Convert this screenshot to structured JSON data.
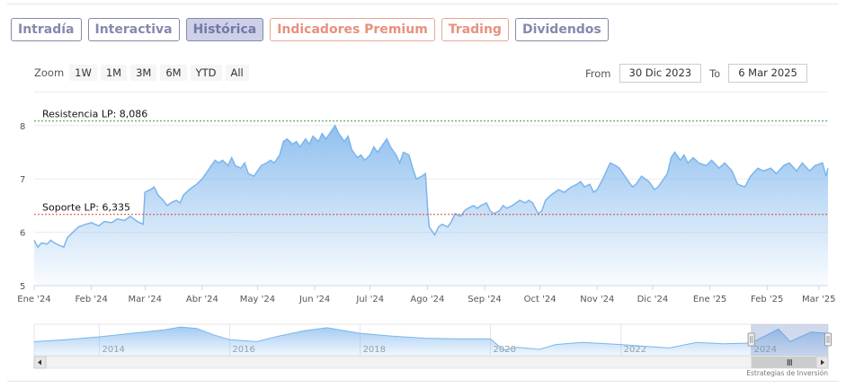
{
  "tabs": [
    {
      "label": "Intradía",
      "style": "normal"
    },
    {
      "label": "Interactiva",
      "style": "normal"
    },
    {
      "label": "Histórica",
      "style": "active"
    },
    {
      "label": "Indicadores Premium",
      "style": "orange"
    },
    {
      "label": "Trading",
      "style": "orange"
    },
    {
      "label": "Dividendos",
      "style": "normal"
    }
  ],
  "zoom": {
    "label": "Zoom",
    "buttons": [
      "1W",
      "1M",
      "3M",
      "6M",
      "YTD",
      "All"
    ]
  },
  "range": {
    "from_label": "From",
    "from_value": "30 Dic 2023",
    "to_label": "To",
    "to_value": "6 Mar 2025"
  },
  "credit": "Estrategias de Inversión",
  "colors": {
    "line": "#7cb5ec",
    "resistance": "#2e9e3e",
    "support": "#d8453f",
    "tab_border": "#8589ad",
    "tab_orange": "#e8917e"
  },
  "chart_data": {
    "type": "area",
    "title": "",
    "ylim": [
      5,
      8.3
    ],
    "yticks": [
      5,
      6,
      7,
      8
    ],
    "xticks": [
      "Ene '24",
      "Feb '24",
      "Mar '24",
      "Abr '24",
      "May '24",
      "Jun '24",
      "Jul '24",
      "Ago '24",
      "Sep '24",
      "Oct '24",
      "Nov '24",
      "Dic '24",
      "Ene '25",
      "Feb '25",
      "Mar '25"
    ],
    "x_start": "2024-01-01",
    "x_end": "2025-03-06",
    "series": [
      {
        "values": [
          [
            "2024-01-01",
            5.85
          ],
          [
            "2024-01-03",
            5.72
          ],
          [
            "2024-01-05",
            5.8
          ],
          [
            "2024-01-08",
            5.78
          ],
          [
            "2024-01-10",
            5.85
          ],
          [
            "2024-01-12",
            5.8
          ],
          [
            "2024-01-15",
            5.75
          ],
          [
            "2024-01-17",
            5.72
          ],
          [
            "2024-01-19",
            5.9
          ],
          [
            "2024-01-22",
            6.0
          ],
          [
            "2024-01-25",
            6.1
          ],
          [
            "2024-01-29",
            6.15
          ],
          [
            "2024-02-01",
            6.18
          ],
          [
            "2024-02-05",
            6.12
          ],
          [
            "2024-02-08",
            6.2
          ],
          [
            "2024-02-12",
            6.18
          ],
          [
            "2024-02-15",
            6.25
          ],
          [
            "2024-02-19",
            6.22
          ],
          [
            "2024-02-22",
            6.3
          ],
          [
            "2024-02-26",
            6.2
          ],
          [
            "2024-02-29",
            6.15
          ],
          [
            "2024-03-01",
            6.75
          ],
          [
            "2024-03-04",
            6.8
          ],
          [
            "2024-03-06",
            6.85
          ],
          [
            "2024-03-08",
            6.7
          ],
          [
            "2024-03-11",
            6.6
          ],
          [
            "2024-03-13",
            6.5
          ],
          [
            "2024-03-15",
            6.55
          ],
          [
            "2024-03-18",
            6.6
          ],
          [
            "2024-03-20",
            6.55
          ],
          [
            "2024-03-22",
            6.7
          ],
          [
            "2024-03-25",
            6.8
          ],
          [
            "2024-03-27",
            6.85
          ],
          [
            "2024-03-29",
            6.9
          ],
          [
            "2024-04-01",
            7.0
          ],
          [
            "2024-04-03",
            7.1
          ],
          [
            "2024-04-05",
            7.2
          ],
          [
            "2024-04-08",
            7.35
          ],
          [
            "2024-04-10",
            7.3
          ],
          [
            "2024-04-12",
            7.35
          ],
          [
            "2024-04-15",
            7.25
          ],
          [
            "2024-04-17",
            7.4
          ],
          [
            "2024-04-19",
            7.25
          ],
          [
            "2024-04-22",
            7.2
          ],
          [
            "2024-04-24",
            7.3
          ],
          [
            "2024-04-26",
            7.1
          ],
          [
            "2024-04-29",
            7.05
          ],
          [
            "2024-05-01",
            7.15
          ],
          [
            "2024-05-03",
            7.25
          ],
          [
            "2024-05-06",
            7.3
          ],
          [
            "2024-05-08",
            7.35
          ],
          [
            "2024-05-10",
            7.3
          ],
          [
            "2024-05-13",
            7.45
          ],
          [
            "2024-05-15",
            7.7
          ],
          [
            "2024-05-17",
            7.75
          ],
          [
            "2024-05-20",
            7.65
          ],
          [
            "2024-05-22",
            7.7
          ],
          [
            "2024-05-24",
            7.6
          ],
          [
            "2024-05-27",
            7.75
          ],
          [
            "2024-05-29",
            7.65
          ],
          [
            "2024-05-31",
            7.8
          ],
          [
            "2024-06-03",
            7.7
          ],
          [
            "2024-06-05",
            7.85
          ],
          [
            "2024-06-07",
            7.75
          ],
          [
            "2024-06-10",
            7.9
          ],
          [
            "2024-06-12",
            8.0
          ],
          [
            "2024-06-14",
            7.85
          ],
          [
            "2024-06-17",
            7.7
          ],
          [
            "2024-06-19",
            7.8
          ],
          [
            "2024-06-21",
            7.55
          ],
          [
            "2024-06-24",
            7.4
          ],
          [
            "2024-06-26",
            7.45
          ],
          [
            "2024-06-28",
            7.35
          ],
          [
            "2024-07-01",
            7.45
          ],
          [
            "2024-07-03",
            7.6
          ],
          [
            "2024-07-05",
            7.5
          ],
          [
            "2024-07-08",
            7.65
          ],
          [
            "2024-07-10",
            7.75
          ],
          [
            "2024-07-12",
            7.6
          ],
          [
            "2024-07-15",
            7.45
          ],
          [
            "2024-07-17",
            7.3
          ],
          [
            "2024-07-19",
            7.5
          ],
          [
            "2024-07-22",
            7.45
          ],
          [
            "2024-07-24",
            7.2
          ],
          [
            "2024-07-26",
            7.0
          ],
          [
            "2024-07-29",
            7.05
          ],
          [
            "2024-07-31",
            7.1
          ],
          [
            "2024-08-01",
            6.5
          ],
          [
            "2024-08-02",
            6.1
          ],
          [
            "2024-08-05",
            5.95
          ],
          [
            "2024-08-07",
            6.1
          ],
          [
            "2024-08-09",
            6.15
          ],
          [
            "2024-08-12",
            6.1
          ],
          [
            "2024-08-14",
            6.2
          ],
          [
            "2024-08-16",
            6.35
          ],
          [
            "2024-08-19",
            6.3
          ],
          [
            "2024-08-21",
            6.4
          ],
          [
            "2024-08-23",
            6.45
          ],
          [
            "2024-08-26",
            6.5
          ],
          [
            "2024-08-28",
            6.45
          ],
          [
            "2024-08-30",
            6.5
          ],
          [
            "2024-09-02",
            6.55
          ],
          [
            "2024-09-04",
            6.4
          ],
          [
            "2024-09-06",
            6.35
          ],
          [
            "2024-09-09",
            6.4
          ],
          [
            "2024-09-11",
            6.5
          ],
          [
            "2024-09-13",
            6.45
          ],
          [
            "2024-09-16",
            6.5
          ],
          [
            "2024-09-18",
            6.55
          ],
          [
            "2024-09-20",
            6.6
          ],
          [
            "2024-09-23",
            6.55
          ],
          [
            "2024-09-25",
            6.6
          ],
          [
            "2024-09-27",
            6.55
          ],
          [
            "2024-09-30",
            6.35
          ],
          [
            "2024-10-02",
            6.4
          ],
          [
            "2024-10-04",
            6.6
          ],
          [
            "2024-10-07",
            6.7
          ],
          [
            "2024-10-09",
            6.75
          ],
          [
            "2024-10-11",
            6.8
          ],
          [
            "2024-10-14",
            6.75
          ],
          [
            "2024-10-16",
            6.8
          ],
          [
            "2024-10-18",
            6.85
          ],
          [
            "2024-10-21",
            6.9
          ],
          [
            "2024-10-23",
            6.95
          ],
          [
            "2024-10-25",
            6.85
          ],
          [
            "2024-10-28",
            6.9
          ],
          [
            "2024-10-30",
            6.75
          ],
          [
            "2024-11-01",
            6.8
          ],
          [
            "2024-11-04",
            7.0
          ],
          [
            "2024-11-06",
            7.15
          ],
          [
            "2024-11-08",
            7.3
          ],
          [
            "2024-11-11",
            7.25
          ],
          [
            "2024-11-13",
            7.2
          ],
          [
            "2024-11-15",
            7.1
          ],
          [
            "2024-11-18",
            6.95
          ],
          [
            "2024-11-20",
            6.85
          ],
          [
            "2024-11-22",
            6.9
          ],
          [
            "2024-11-25",
            7.05
          ],
          [
            "2024-11-27",
            7.0
          ],
          [
            "2024-11-29",
            6.95
          ],
          [
            "2024-12-02",
            6.8
          ],
          [
            "2024-12-04",
            6.85
          ],
          [
            "2024-12-06",
            6.95
          ],
          [
            "2024-12-09",
            7.1
          ],
          [
            "2024-12-11",
            7.4
          ],
          [
            "2024-12-13",
            7.5
          ],
          [
            "2024-12-16",
            7.35
          ],
          [
            "2024-12-18",
            7.45
          ],
          [
            "2024-12-20",
            7.3
          ],
          [
            "2024-12-23",
            7.4
          ],
          [
            "2024-12-26",
            7.3
          ],
          [
            "2024-12-30",
            7.25
          ],
          [
            "2025-01-02",
            7.35
          ],
          [
            "2025-01-06",
            7.2
          ],
          [
            "2025-01-09",
            7.3
          ],
          [
            "2025-01-13",
            7.15
          ],
          [
            "2025-01-16",
            6.9
          ],
          [
            "2025-01-20",
            6.85
          ],
          [
            "2025-01-23",
            7.05
          ],
          [
            "2025-01-27",
            7.2
          ],
          [
            "2025-01-30",
            7.15
          ],
          [
            "2025-02-03",
            7.2
          ],
          [
            "2025-02-06",
            7.1
          ],
          [
            "2025-02-10",
            7.25
          ],
          [
            "2025-02-13",
            7.3
          ],
          [
            "2025-02-17",
            7.15
          ],
          [
            "2025-02-20",
            7.3
          ],
          [
            "2025-02-24",
            7.15
          ],
          [
            "2025-02-27",
            7.25
          ],
          [
            "2025-03-03",
            7.3
          ],
          [
            "2025-03-05",
            7.05
          ],
          [
            "2025-03-06",
            7.2
          ]
        ]
      }
    ],
    "annotations": [
      {
        "label": "Resistencia LP: 8,086",
        "value": 8.086
      },
      {
        "label": "Soporte LP: 6,335",
        "value": 6.335
      }
    ],
    "navigator": {
      "xticks": [
        "2014",
        "2016",
        "2018",
        "2020",
        "2022",
        "2024"
      ],
      "x_start": "2013-01-01",
      "x_end": "2025-03-06",
      "values": [
        [
          "2013-01-01",
          6.0
        ],
        [
          "2013-07-01",
          6.3
        ],
        [
          "2014-01-01",
          6.7
        ],
        [
          "2014-07-01",
          7.2
        ],
        [
          "2015-01-01",
          7.7
        ],
        [
          "2015-04-01",
          8.1
        ],
        [
          "2015-07-01",
          7.9
        ],
        [
          "2015-10-01",
          7.0
        ],
        [
          "2016-01-01",
          6.3
        ],
        [
          "2016-06-01",
          6.0
        ],
        [
          "2016-10-01",
          6.8
        ],
        [
          "2017-03-01",
          7.6
        ],
        [
          "2017-07-01",
          8.0
        ],
        [
          "2017-10-01",
          7.6
        ],
        [
          "2018-01-01",
          7.2
        ],
        [
          "2018-07-01",
          6.8
        ],
        [
          "2019-01-01",
          6.5
        ],
        [
          "2019-07-01",
          6.4
        ],
        [
          "2020-01-01",
          6.4
        ],
        [
          "2020-03-15",
          4.8
        ],
        [
          "2020-06-01",
          5.2
        ],
        [
          "2020-10-01",
          4.9
        ],
        [
          "2021-01-01",
          5.6
        ],
        [
          "2021-06-01",
          5.9
        ],
        [
          "2022-01-01",
          5.6
        ],
        [
          "2022-06-01",
          5.3
        ],
        [
          "2022-10-01",
          5.1
        ],
        [
          "2023-03-01",
          5.9
        ],
        [
          "2023-08-01",
          5.7
        ],
        [
          "2024-01-01",
          5.8
        ],
        [
          "2024-06-01",
          7.8
        ],
        [
          "2024-08-05",
          6.0
        ],
        [
          "2024-12-01",
          7.4
        ],
        [
          "2025-03-06",
          7.2
        ]
      ]
    }
  }
}
